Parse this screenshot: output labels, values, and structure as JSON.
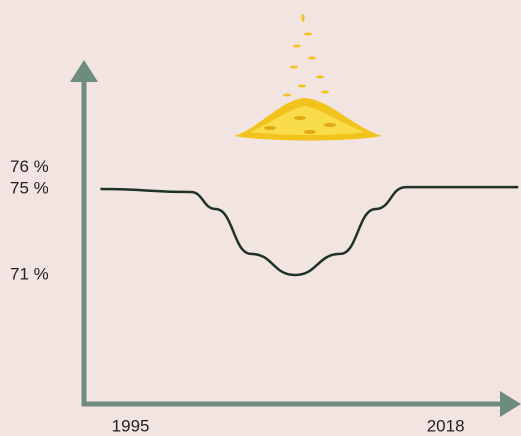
{
  "chart_data": {
    "type": "line",
    "x": [
      1992.8,
      1999.4,
      2001.2,
      2003.8,
      2007.0,
      2010.3,
      2012.9,
      2015.1,
      2023.3
    ],
    "values": [
      75,
      74.86,
      74.07,
      71.98,
      71,
      71.98,
      74.07,
      75.09,
      75.09
    ],
    "color": "#1e3326",
    "xlim": [
      1991.6,
      2022.7
    ],
    "xticks": [
      1995,
      2018
    ],
    "ylim": [
      65,
      81
    ],
    "yticks": [
      {
        "value": 71,
        "label": "71 %"
      },
      {
        "value": 75,
        "label": "75 %"
      },
      {
        "value": 76,
        "label": "76 %"
      }
    ],
    "axis_color": "#6d8b7f"
  }
}
